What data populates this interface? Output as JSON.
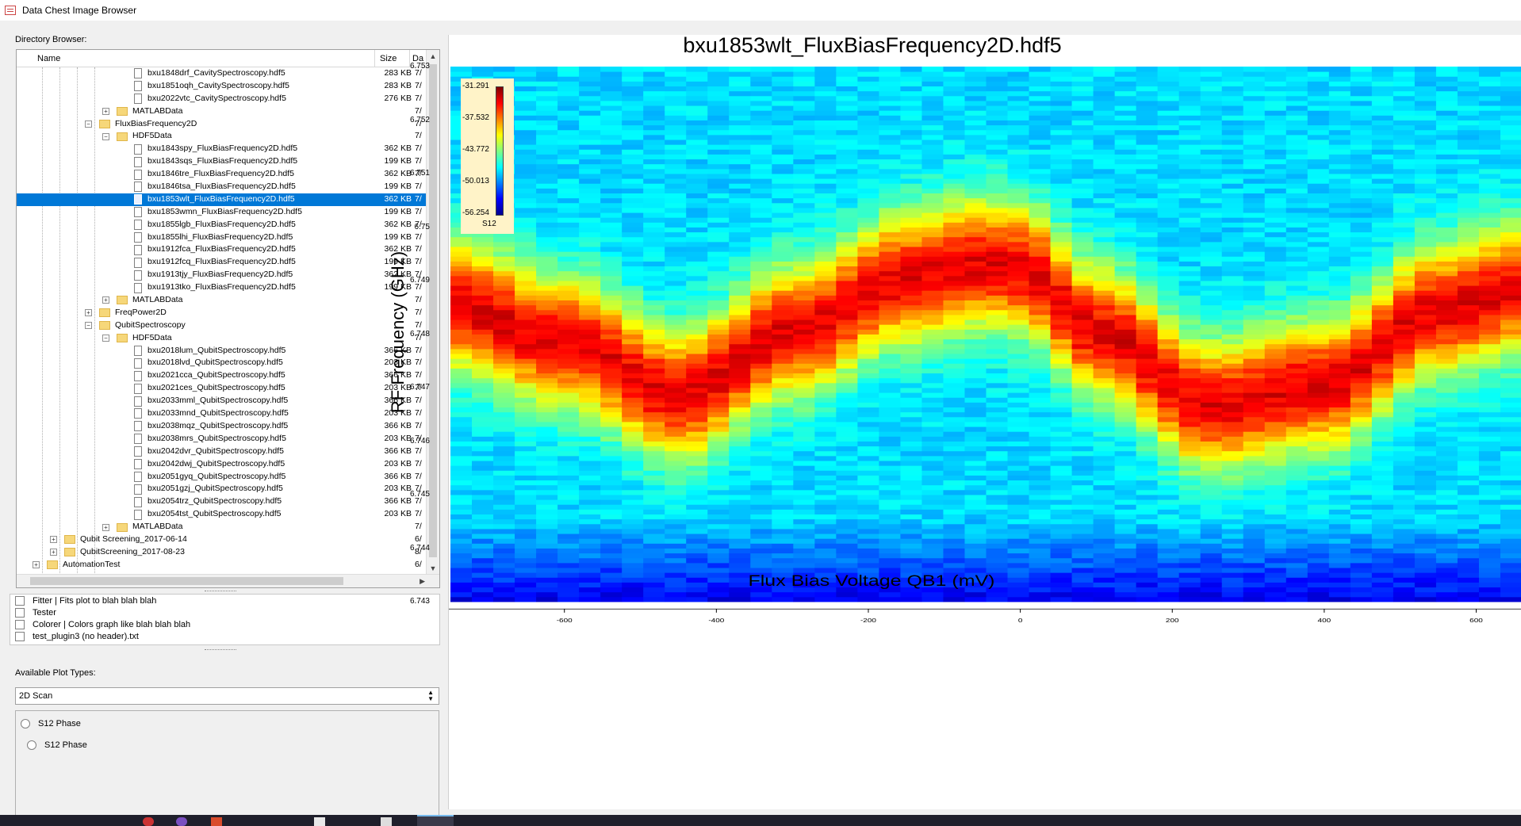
{
  "window": {
    "title": "Data Chest Image Browser"
  },
  "directory_browser": {
    "label": "Directory Browser:",
    "columns": {
      "name": "Name",
      "size": "Size",
      "date": "Da"
    },
    "rows": [
      {
        "name": "bxu1848drf_CavitySpectroscopy.hdf5",
        "type": "file",
        "depth": 5,
        "size": "283 KB",
        "date": "7/"
      },
      {
        "name": "bxu1851oqh_CavitySpectroscopy.hdf5",
        "type": "file",
        "depth": 5,
        "size": "283 KB",
        "date": "7/"
      },
      {
        "name": "bxu2022vtc_CavitySpectroscopy.hdf5",
        "type": "file",
        "depth": 5,
        "size": "276 KB",
        "date": "7/"
      },
      {
        "name": "MATLABData",
        "type": "folder",
        "depth": 4,
        "expander": "+",
        "size": "",
        "date": "7/"
      },
      {
        "name": "FluxBiasFrequency2D",
        "type": "folder",
        "depth": 3,
        "expander": "−",
        "size": "",
        "date": "7/"
      },
      {
        "name": "HDF5Data",
        "type": "folder",
        "depth": 4,
        "expander": "−",
        "size": "",
        "date": "7/"
      },
      {
        "name": "bxu1843spy_FluxBiasFrequency2D.hdf5",
        "type": "file",
        "depth": 5,
        "size": "362 KB",
        "date": "7/"
      },
      {
        "name": "bxu1843sqs_FluxBiasFrequency2D.hdf5",
        "type": "file",
        "depth": 5,
        "size": "199 KB",
        "date": "7/"
      },
      {
        "name": "bxu1846tre_FluxBiasFrequency2D.hdf5",
        "type": "file",
        "depth": 5,
        "size": "362 KB",
        "date": "7/"
      },
      {
        "name": "bxu1846tsa_FluxBiasFrequency2D.hdf5",
        "type": "file",
        "depth": 5,
        "size": "199 KB",
        "date": "7/"
      },
      {
        "name": "bxu1853wlt_FluxBiasFrequency2D.hdf5",
        "type": "file",
        "depth": 5,
        "size": "362 KB",
        "date": "7/",
        "selected": true
      },
      {
        "name": "bxu1853wmn_FluxBiasFrequency2D.hdf5",
        "type": "file",
        "depth": 5,
        "size": "199 KB",
        "date": "7/"
      },
      {
        "name": "bxu1855lgb_FluxBiasFrequency2D.hdf5",
        "type": "file",
        "depth": 5,
        "size": "362 KB",
        "date": "7/"
      },
      {
        "name": "bxu1855lhi_FluxBiasFrequency2D.hdf5",
        "type": "file",
        "depth": 5,
        "size": "199 KB",
        "date": "7/"
      },
      {
        "name": "bxu1912fca_FluxBiasFrequency2D.hdf5",
        "type": "file",
        "depth": 5,
        "size": "362 KB",
        "date": "7/"
      },
      {
        "name": "bxu1912fcq_FluxBiasFrequency2D.hdf5",
        "type": "file",
        "depth": 5,
        "size": "199 KB",
        "date": "7/"
      },
      {
        "name": "bxu1913tjy_FluxBiasFrequency2D.hdf5",
        "type": "file",
        "depth": 5,
        "size": "362 KB",
        "date": "7/"
      },
      {
        "name": "bxu1913tko_FluxBiasFrequency2D.hdf5",
        "type": "file",
        "depth": 5,
        "size": "199 KB",
        "date": "7/"
      },
      {
        "name": "MATLABData",
        "type": "folder",
        "depth": 4,
        "expander": "+",
        "size": "",
        "date": "7/"
      },
      {
        "name": "FreqPower2D",
        "type": "folder",
        "depth": 3,
        "expander": "+",
        "size": "",
        "date": "7/"
      },
      {
        "name": "QubitSpectroscopy",
        "type": "folder",
        "depth": 3,
        "expander": "−",
        "size": "",
        "date": "7/"
      },
      {
        "name": "HDF5Data",
        "type": "folder",
        "depth": 4,
        "expander": "−",
        "size": "",
        "date": "7/"
      },
      {
        "name": "bxu2018lum_QubitSpectroscopy.hdf5",
        "type": "file",
        "depth": 5,
        "size": "366 KB",
        "date": "7/"
      },
      {
        "name": "bxu2018lvd_QubitSpectroscopy.hdf5",
        "type": "file",
        "depth": 5,
        "size": "203 KB",
        "date": "7/"
      },
      {
        "name": "bxu2021cca_QubitSpectroscopy.hdf5",
        "type": "file",
        "depth": 5,
        "size": "366 KB",
        "date": "7/"
      },
      {
        "name": "bxu2021ces_QubitSpectroscopy.hdf5",
        "type": "file",
        "depth": 5,
        "size": "203 KB",
        "date": "7/"
      },
      {
        "name": "bxu2033mml_QubitSpectroscopy.hdf5",
        "type": "file",
        "depth": 5,
        "size": "366 KB",
        "date": "7/"
      },
      {
        "name": "bxu2033mnd_QubitSpectroscopy.hdf5",
        "type": "file",
        "depth": 5,
        "size": "203 KB",
        "date": "7/"
      },
      {
        "name": "bxu2038mqz_QubitSpectroscopy.hdf5",
        "type": "file",
        "depth": 5,
        "size": "366 KB",
        "date": "7/"
      },
      {
        "name": "bxu2038mrs_QubitSpectroscopy.hdf5",
        "type": "file",
        "depth": 5,
        "size": "203 KB",
        "date": "7/"
      },
      {
        "name": "bxu2042dvr_QubitSpectroscopy.hdf5",
        "type": "file",
        "depth": 5,
        "size": "366 KB",
        "date": "7/"
      },
      {
        "name": "bxu2042dwj_QubitSpectroscopy.hdf5",
        "type": "file",
        "depth": 5,
        "size": "203 KB",
        "date": "7/"
      },
      {
        "name": "bxu2051gyq_QubitSpectroscopy.hdf5",
        "type": "file",
        "depth": 5,
        "size": "366 KB",
        "date": "7/"
      },
      {
        "name": "bxu2051gzj_QubitSpectroscopy.hdf5",
        "type": "file",
        "depth": 5,
        "size": "203 KB",
        "date": "7/"
      },
      {
        "name": "bxu2054trz_QubitSpectroscopy.hdf5",
        "type": "file",
        "depth": 5,
        "size": "366 KB",
        "date": "7/"
      },
      {
        "name": "bxu2054tst_QubitSpectroscopy.hdf5",
        "type": "file",
        "depth": 5,
        "size": "203 KB",
        "date": "7/"
      },
      {
        "name": "MATLABData",
        "type": "folder",
        "depth": 4,
        "expander": "+",
        "size": "",
        "date": "7/"
      },
      {
        "name": "Qubit Screening_2017-06-14",
        "type": "folder",
        "depth": 1,
        "expander": "+",
        "size": "",
        "date": "6/"
      },
      {
        "name": "QubitScreening_2017-08-23",
        "type": "folder",
        "depth": 1,
        "expander": "+",
        "size": "",
        "date": "8/"
      },
      {
        "name": "AutomationTest",
        "type": "folder",
        "depth": 0,
        "expander": "+",
        "size": "",
        "date": "6/"
      }
    ]
  },
  "plugins": [
    {
      "label": "Fitter  |  Fits plot to blah blah blah"
    },
    {
      "label": "Tester"
    },
    {
      "label": "Colorer  |  Colors graph like blah blah blah"
    },
    {
      "label": "test_plugin3 (no header).txt"
    }
  ],
  "plot_types": {
    "label": "Available Plot Types:",
    "selected": "2D Scan"
  },
  "plot_options": [
    {
      "label": "S12 Phase"
    },
    {
      "label": "S12 Phase"
    }
  ],
  "plot": {
    "title": "bxu1853wlt_FluxBiasFrequency2D.hdf5",
    "colors": {
      "low": "#00008f",
      "mid": "#7fff7f",
      "high": "#7f0000"
    }
  },
  "chart_data": {
    "type": "heatmap",
    "title": "bxu1853wlt_FluxBiasFrequency2D.hdf5",
    "xlabel": "Flux Bias Voltage QB1 (mV)",
    "ylabel": "RF Frequency (GHz)",
    "x_ticks": [
      "-600",
      "-400",
      "-200",
      "0",
      "200",
      "400",
      "600"
    ],
    "x_tick_values": [
      -600,
      -400,
      -200,
      0,
      200,
      400,
      600
    ],
    "y_ticks": [
      "6.743",
      "6.744",
      "6.745",
      "6.746",
      "6.747",
      "6.748",
      "6.749",
      "6.75",
      "6.751",
      "6.752",
      "6.753"
    ],
    "y_tick_values": [
      6.743,
      6.744,
      6.745,
      6.746,
      6.747,
      6.748,
      6.749,
      6.75,
      6.751,
      6.752,
      6.753
    ],
    "xlim": [
      -750,
      660
    ],
    "ylim": [
      6.7429,
      6.753
    ],
    "colorbar": {
      "label": "S12",
      "ticks": [
        "-31.291",
        "-37.532",
        "-43.772",
        "-50.013",
        "-56.254"
      ],
      "range": [
        -56.254,
        -31.291
      ]
    },
    "resonance_center_ghz": {
      "x_mv": [
        -750,
        -600,
        -450,
        -300,
        -150,
        -50,
        0,
        100,
        250,
        400,
        550,
        660
      ],
      "f_ghz": [
        6.7485,
        6.7478,
        6.7468,
        6.748,
        6.749,
        6.7493,
        6.7492,
        6.748,
        6.7466,
        6.747,
        6.7484,
        6.7488
      ]
    },
    "resonance_width_ghz": 0.0012,
    "grid": false
  }
}
